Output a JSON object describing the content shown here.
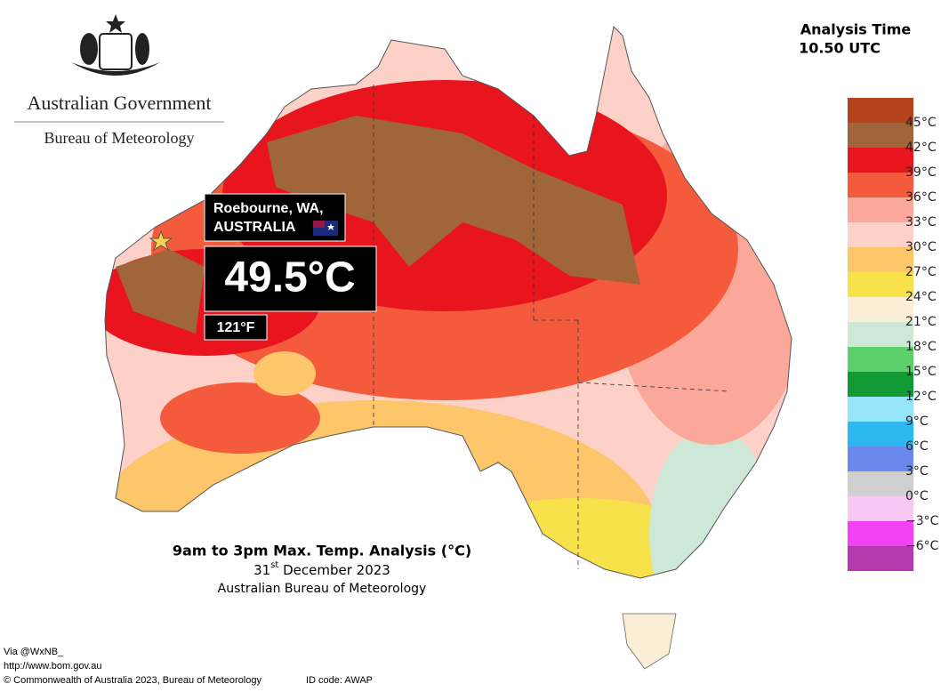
{
  "header": {
    "government": "Australian Government",
    "bureau": "Bureau of Meteorology",
    "analysis_label": "Analysis Time",
    "analysis_time": "10.50 UTC"
  },
  "callout": {
    "place": "Roebourne, WA,",
    "country": "AUSTRALIA",
    "temp_c": "49.5°C",
    "temp_f": "121°F"
  },
  "map": {
    "title": "9am to 3pm Max. Temp. Analysis (°C)",
    "date_day": "31",
    "date_suffix": "st",
    "date_rest": " December 2023",
    "source": "Australian Bureau of Meteorology"
  },
  "legend": {
    "swatches": [
      "#b5431c",
      "#a0663a",
      "#e8141e",
      "#f45a3c",
      "#fba89b",
      "#fdd0c8",
      "#fdc66b",
      "#f8e24c",
      "#fbeed7",
      "#cde8d6",
      "#5dcf6b",
      "#129b34",
      "#95e4f7",
      "#2bb9ef",
      "#6b88ed",
      "#cfcfcf",
      "#f9c9f6",
      "#f342f3",
      "#b53aad"
    ],
    "labels": [
      "45°C",
      "42°C",
      "39°C",
      "36°C",
      "33°C",
      "30°C",
      "27°C",
      "24°C",
      "21°C",
      "18°C",
      "15°C",
      "12°C",
      "9°C",
      "6°C",
      "3°C",
      "0°C",
      "−3°C",
      "−6°C"
    ]
  },
  "footer": {
    "via": "Via @WxNB_",
    "url": "http://www.bom.gov.au",
    "copyright": "© Commonwealth of Australia 2023, Bureau of Meteorology",
    "id_code": "ID code: AWAP"
  }
}
